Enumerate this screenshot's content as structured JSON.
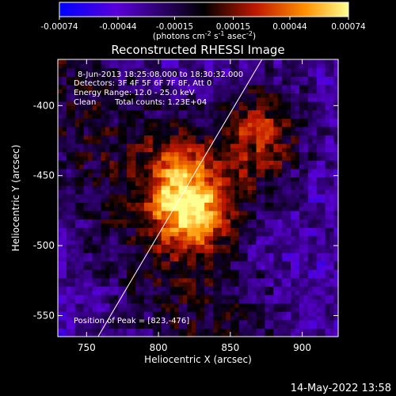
{
  "chart_data": {
    "type": "heatmap",
    "title": "Reconstructed RHESSI Image",
    "xlabel": "Heliocentric X (arcsec)",
    "ylabel": "Heliocentric Y (arcsec)",
    "xlim": [
      730,
      925
    ],
    "ylim": [
      -565,
      -367
    ],
    "x_ticks": [
      750,
      800,
      850,
      900
    ],
    "y_ticks": [
      -550,
      -500,
      -450,
      -400
    ],
    "colorbar": {
      "range": [
        -0.00074,
        0.00074
      ],
      "tick_values": [
        -0.00074,
        -0.00044,
        -0.00015,
        0.00015,
        0.00044,
        0.00074
      ],
      "tick_labels": [
        "-0.00074",
        "-0.00044",
        "-0.00015",
        "0.00015",
        "0.00044",
        "0.00074"
      ],
      "unit_base": "(photons cm",
      "unit_exp1": "-2",
      "unit_mid": " s",
      "unit_exp2": "-1",
      "unit_mid2": " asec",
      "unit_exp3": "-2",
      "unit_end": ")",
      "colors": [
        "#0000ff",
        "#5a00d8",
        "#000000",
        "#c01800",
        "#ff9000",
        "#ffff90"
      ]
    },
    "annotations": {
      "time_range": "8-Jun-2013 18:25:08.000 to 18:30:32.000",
      "detectors": "Detectors: 3F 4F 5F 6F 7F 8F, Att 0",
      "energy": "Energy Range: 12.0 - 25.0 keV",
      "algorithm": "Clean",
      "counts": "Total counts: 1.23E+04",
      "peak": "Position of Peak = [823,-476]"
    },
    "peak": [
      823,
      -476
    ],
    "limb_line": [
      [
        758,
        -565
      ],
      [
        872,
        -367
      ]
    ],
    "grid": false
  },
  "footer_date": "14-May-2022 13:58"
}
